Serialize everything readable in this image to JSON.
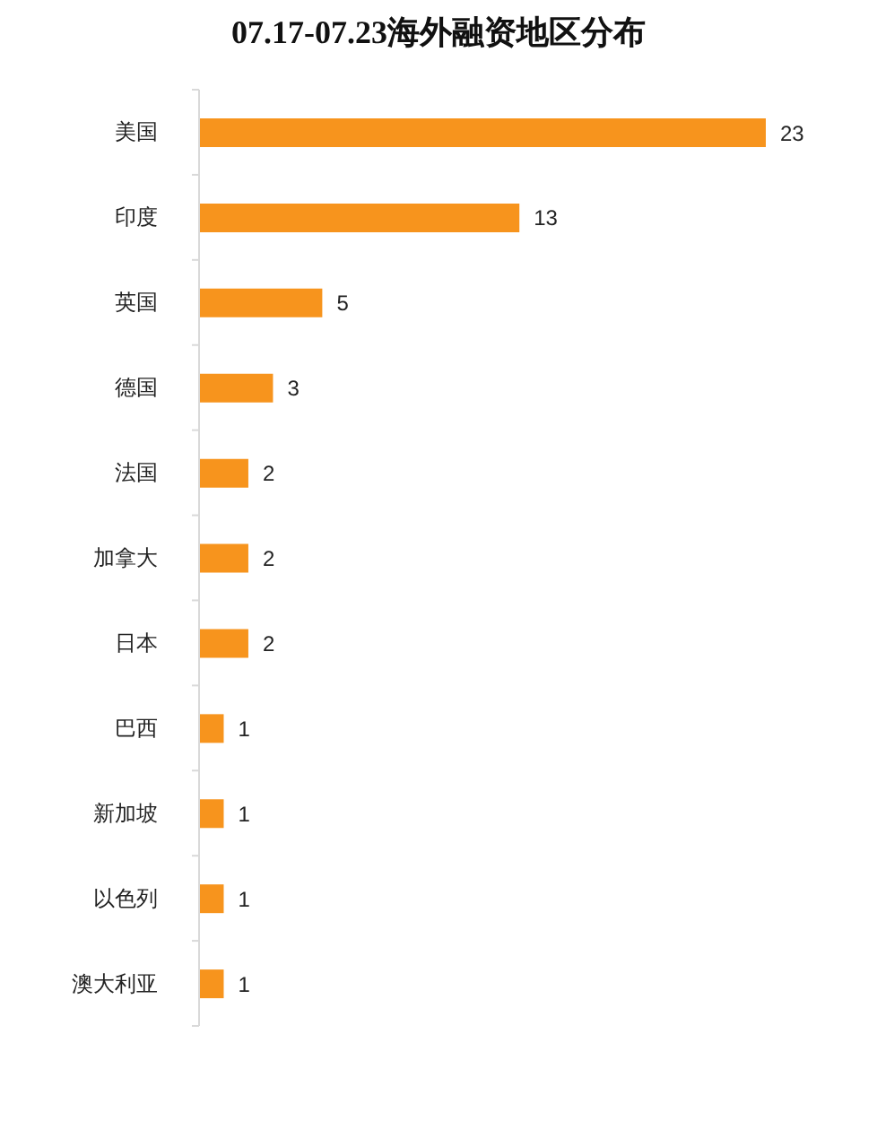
{
  "chart_data": {
    "type": "bar",
    "orientation": "horizontal",
    "title": "07.17-07.23海外融资地区分布",
    "categories": [
      "美国",
      "印度",
      "英国",
      "德国",
      "法国",
      "加拿大",
      "日本",
      "巴西",
      "新加坡",
      "以色列",
      "澳大利亚"
    ],
    "values": [
      23,
      13,
      5,
      3,
      2,
      2,
      2,
      1,
      1,
      1,
      1
    ],
    "color": "#f7941d",
    "data_labels": true
  }
}
